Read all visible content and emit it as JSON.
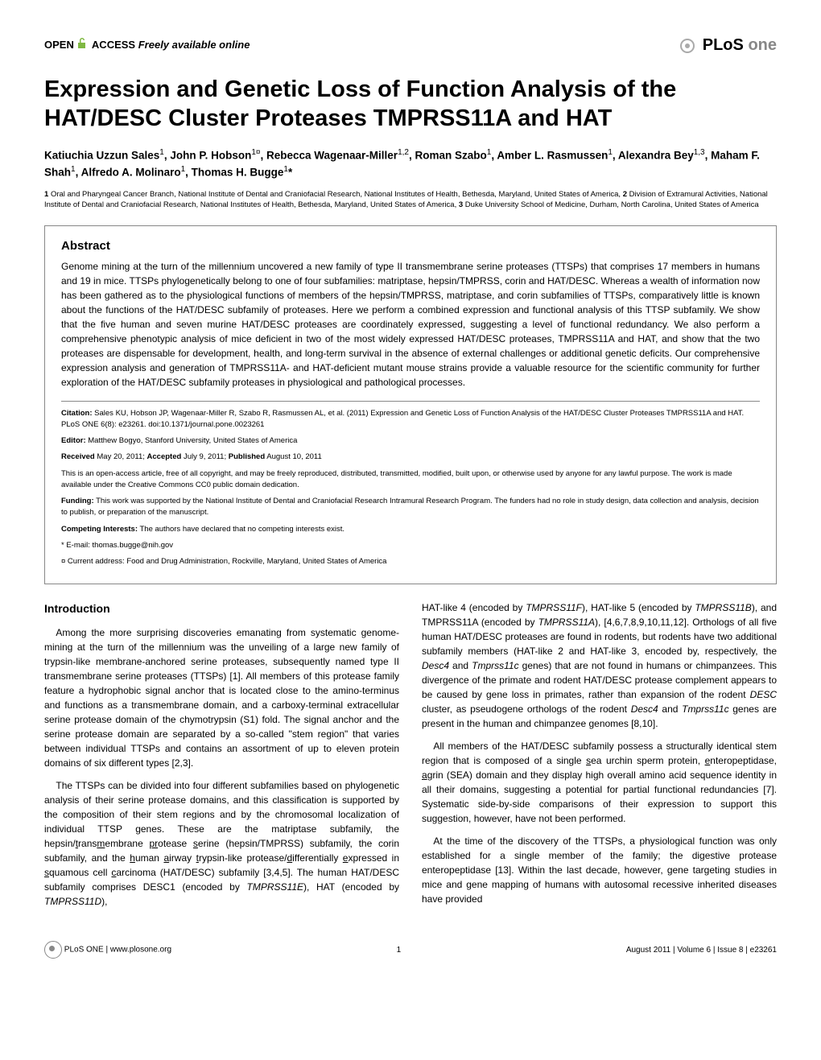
{
  "header": {
    "open_access_open": "OPEN",
    "open_access_access": "ACCESS",
    "open_access_tagline": "Freely available online",
    "journal_plos": "PLoS",
    "journal_one": "one"
  },
  "title": "Expression and Genetic Loss of Function Analysis of the HAT/DESC Cluster Proteases TMPRSS11A and HAT",
  "authors_html": "Katiuchia Uzzun Sales<sup>1</sup>, John P. Hobson<sup>1¤</sup>, Rebecca Wagenaar-Miller<sup>1,2</sup>, Roman Szabo<sup>1</sup>, Amber L. Rasmussen<sup>1</sup>, Alexandra Bey<sup>1,3</sup>, Maham F. Shah<sup>1</sup>, Alfredo A. Molinaro<sup>1</sup>, Thomas H. Bugge<sup>1</sup>*",
  "affiliations": [
    {
      "num": "1",
      "text": "Oral and Pharyngeal Cancer Branch, National Institute of Dental and Craniofacial Research, National Institutes of Health, Bethesda, Maryland, United States of America,"
    },
    {
      "num": "2",
      "text": "Division of Extramural Activities, National Institute of Dental and Craniofacial Research, National Institutes of Health, Bethesda, Maryland, United States of America,"
    },
    {
      "num": "3",
      "text": "Duke University School of Medicine, Durham, North Carolina, United States of America"
    }
  ],
  "abstract": {
    "title": "Abstract",
    "text": "Genome mining at the turn of the millennium uncovered a new family of type II transmembrane serine proteases (TTSPs) that comprises 17 members in humans and 19 in mice. TTSPs phylogenetically belong to one of four subfamilies: matriptase, hepsin/TMPRSS, corin and HAT/DESC. Whereas a wealth of information now has been gathered as to the physiological functions of members of the hepsin/TMPRSS, matriptase, and corin subfamilies of TTSPs, comparatively little is known about the functions of the HAT/DESC subfamily of proteases. Here we perform a combined expression and functional analysis of this TTSP subfamily. We show that the five human and seven murine HAT/DESC proteases are coordinately expressed, suggesting a level of functional redundancy. We also perform a comprehensive phenotypic analysis of mice deficient in two of the most widely expressed HAT/DESC proteases, TMPRSS11A and HAT, and show that the two proteases are dispensable for development, health, and long-term survival in the absence of external challenges or additional genetic deficits. Our comprehensive expression analysis and generation of TMPRSS11A- and HAT-deficient mutant mouse strains provide a valuable resource for the scientific community for further exploration of the HAT/DESC subfamily proteases in physiological and pathological processes."
  },
  "meta": {
    "citation_label": "Citation:",
    "citation": "Sales KU, Hobson JP, Wagenaar-Miller R, Szabo R, Rasmussen AL, et al. (2011) Expression and Genetic Loss of Function Analysis of the HAT/DESC Cluster Proteases TMPRSS11A and HAT. PLoS ONE 6(8): e23261. doi:10.1371/journal.pone.0023261",
    "editor_label": "Editor:",
    "editor": "Matthew Bogyo, Stanford University, United States of America",
    "received_label": "Received",
    "received": "May 20, 2011;",
    "accepted_label": "Accepted",
    "accepted": "July 9, 2011;",
    "published_label": "Published",
    "published": "August 10, 2011",
    "license": "This is an open-access article, free of all copyright, and may be freely reproduced, distributed, transmitted, modified, built upon, or otherwise used by anyone for any lawful purpose. The work is made available under the Creative Commons CC0 public domain dedication.",
    "funding_label": "Funding:",
    "funding": "This work was supported by the National Institute of Dental and Craniofacial Research Intramural Research Program. The funders had no role in study design, data collection and analysis, decision to publish, or preparation of the manuscript.",
    "competing_label": "Competing Interests:",
    "competing": "The authors have declared that no competing interests exist.",
    "email": "* E-mail: thomas.bugge@nih.gov",
    "current_addr": "¤ Current address: Food and Drug Administration, Rockville, Maryland, United States of America"
  },
  "intro_title": "Introduction",
  "col_left": {
    "p1": "Among the more surprising discoveries emanating from systematic genome-mining at the turn of the millennium was the unveiling of a large new family of trypsin-like membrane-anchored serine proteases, subsequently named type II transmembrane serine proteases (TTSPs) [1]. All members of this protease family feature a hydrophobic signal anchor that is located close to the amino-terminus and functions as a transmembrane domain, and a carboxy-terminal extracellular serine protease domain of the chymotrypsin (S1) fold. The signal anchor and the serine protease domain are separated by a so-called \"stem region\" that varies between individual TTSPs and contains an assortment of up to eleven protein domains of six different types [2,3].",
    "p2_html": "The TTSPs can be divided into four different subfamilies based on phylogenetic analysis of their serine protease domains, and this classification is supported by the composition of their stem regions and by the chromosomal localization of individual TTSP genes. These are the matriptase subfamily, the hepsin/<span class='underline'>t</span>rans<span class='underline'>m</span>embrane <span class='underline'>pr</span>otease <span class='underline'>s</span>erine (hepsin/TMPRSS) subfamily, the corin subfamily, and the <span class='underline'>h</span>uman <span class='underline'>a</span>irway <span class='underline'>t</span>rypsin-like protease/<span class='underline'>d</span>ifferentially <span class='underline'>e</span>xpressed in <span class='underline'>s</span>quamous cell <span class='underline'>c</span>arcinoma (HAT/DESC) subfamily [3,4,5]. The human HAT/DESC subfamily comprises DESC1 (encoded by <span class='italic'>TMPRSS11E</span>), HAT (encoded by <span class='italic'>TMPRSS11D</span>),"
  },
  "col_right": {
    "p1_html": "HAT-like 4 (encoded by <span class='italic'>TMPRSS11F</span>), HAT-like 5 (encoded by <span class='italic'>TMPRSS11B</span>), and TMPRSS11A (encoded by <span class='italic'>TMPRSS11A</span>), [4,6,7,8,9,10,11,12]. Orthologs of all five human HAT/DESC proteases are found in rodents, but rodents have two additional subfamily members (HAT-like 2 and HAT-like 3, encoded by, respectively, the <span class='italic'>Desc4</span> and <span class='italic'>Tmprss11c</span> genes) that are not found in humans or chimpanzees. This divergence of the primate and rodent HAT/DESC protease complement appears to be caused by gene loss in primates, rather than expansion of the rodent <span class='italic'>DESC</span> cluster, as pseudogene orthologs of the rodent <span class='italic'>Desc4</span> and <span class='italic'>Tmprss11c</span> genes are present in the human and chimpanzee genomes [8,10].",
    "p2_html": "All members of the HAT/DESC subfamily possess a structurally identical stem region that is composed of a single <span class='underline'>s</span>ea urchin sperm protein, <span class='underline'>e</span>nteropeptidase, <span class='underline'>a</span>grin (SEA) domain and they display high overall amino acid sequence identity in all their domains, suggesting a potential for partial functional redundancies [7]. Systematic side-by-side comparisons of their expression to support this suggestion, however, have not been performed.",
    "p3": "At the time of the discovery of the TTSPs, a physiological function was only established for a single member of the family; the digestive protease enteropeptidase [13]. Within the last decade, however, gene targeting studies in mice and gene mapping of humans with autosomal recessive inherited diseases have provided"
  },
  "footer": {
    "site": "PLoS ONE | www.plosone.org",
    "page": "1",
    "issue": "August 2011 | Volume 6 | Issue 8 | e23261"
  },
  "colors": {
    "text": "#000000",
    "border": "#888888",
    "green": "#7fb842",
    "grey": "#888888"
  }
}
